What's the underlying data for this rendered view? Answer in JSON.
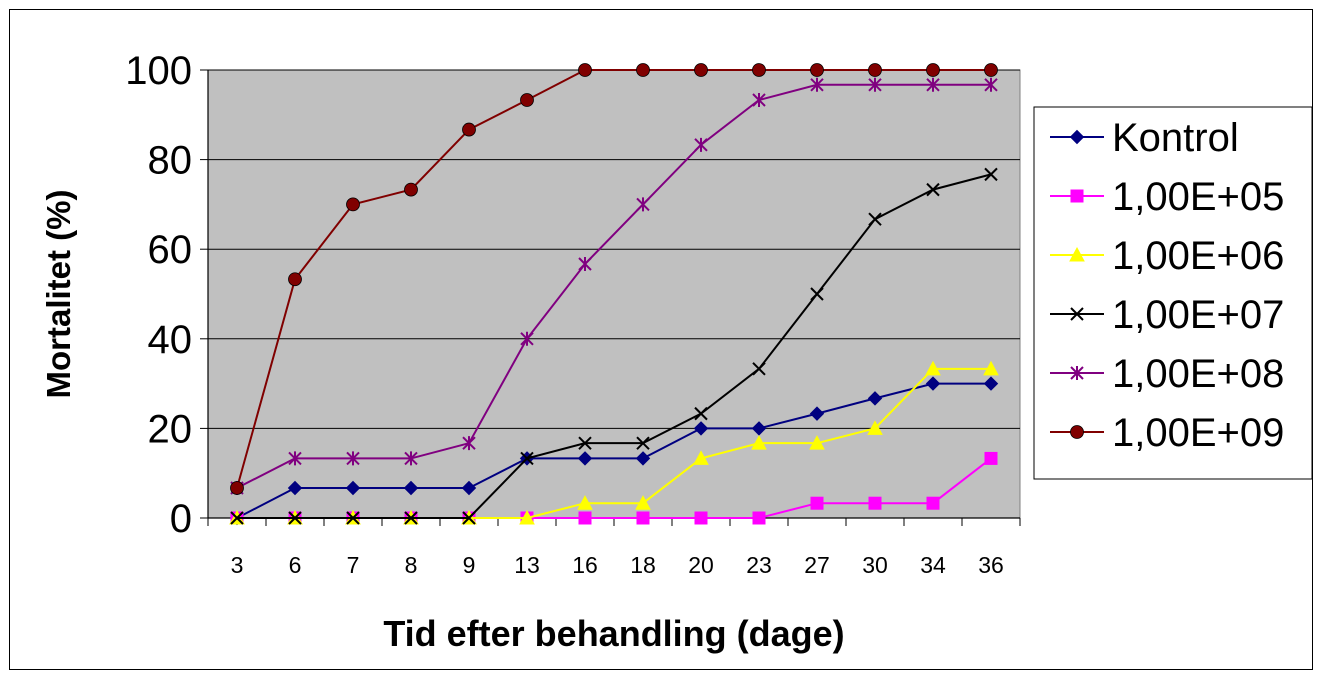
{
  "chart_data": {
    "type": "line",
    "title": "",
    "xlabel": "Tid efter behandling (dage)",
    "ylabel": "Mortalitet (%)",
    "categories": [
      "3",
      "6",
      "7",
      "8",
      "9",
      "13",
      "16",
      "18",
      "20",
      "23",
      "27",
      "30",
      "34",
      "36"
    ],
    "ylim": [
      0,
      100
    ],
    "yticks": [
      0,
      20,
      40,
      60,
      80,
      100
    ],
    "grid": true,
    "plot_background": "#c0c0c0",
    "legend_position": "right",
    "series": [
      {
        "name": "Kontrol",
        "color": "#000080",
        "marker": "diamond",
        "values": [
          0,
          6.7,
          6.7,
          6.7,
          6.7,
          13.3,
          13.3,
          13.3,
          20,
          20,
          23.3,
          26.7,
          30,
          30
        ]
      },
      {
        "name": "1,00E+05",
        "color": "#ff00ff",
        "marker": "square",
        "values": [
          0,
          0,
          0,
          0,
          0,
          0,
          0,
          0,
          0,
          0,
          3.3,
          3.3,
          3.3,
          13.3
        ]
      },
      {
        "name": "1,00E+06",
        "color": "#ffff00",
        "marker": "triangle",
        "values": [
          0,
          0,
          0,
          0,
          0,
          0,
          3.3,
          3.3,
          13.3,
          16.7,
          16.7,
          20,
          33.3,
          33.3
        ]
      },
      {
        "name": "1,00E+07",
        "color": "#000000",
        "marker": "x",
        "values": [
          0,
          0,
          0,
          0,
          0,
          13.3,
          16.7,
          16.7,
          23.3,
          33.3,
          50,
          66.7,
          73.3,
          76.7
        ]
      },
      {
        "name": "1,00E+08",
        "color": "#800080",
        "marker": "star",
        "values": [
          6.7,
          13.3,
          13.3,
          13.3,
          16.7,
          40,
          56.7,
          70,
          83.3,
          93.3,
          96.7,
          96.7,
          96.7,
          96.7
        ]
      },
      {
        "name": "1,00E+09",
        "color": "#800000",
        "marker": "circle",
        "values": [
          6.7,
          53.3,
          70,
          73.3,
          86.7,
          93.3,
          100,
          100,
          100,
          100,
          100,
          100,
          100,
          100
        ]
      }
    ]
  }
}
